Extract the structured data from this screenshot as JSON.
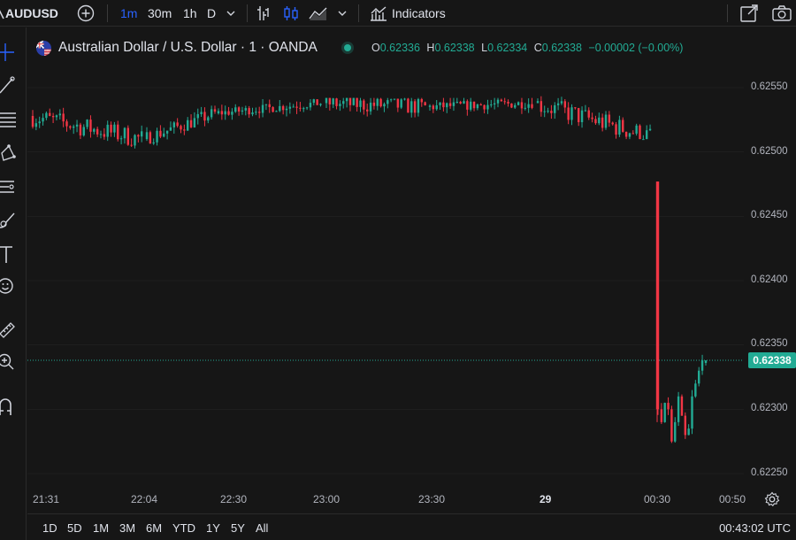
{
  "toolbar": {
    "symbol": "AUDUSD",
    "timeframes": [
      "1m",
      "30m",
      "1h",
      "D"
    ],
    "active_timeframe": "1m",
    "indicators_label": "Indicators"
  },
  "legend": {
    "title": "Australian Dollar / U.S. Dollar · 1 · OANDA",
    "open_key": "O",
    "open": "0.62336",
    "high_key": "H",
    "high": "0.62338",
    "low_key": "L",
    "low": "0.62334",
    "close_key": "C",
    "close": "0.62338",
    "change": "−0.00002 (−0.00%)"
  },
  "price_axis": {
    "ticks": [
      "0.62550",
      "0.62500",
      "0.62450",
      "0.62400",
      "0.62350",
      "0.62300",
      "0.62250"
    ],
    "last_price": "0.62338"
  },
  "time_axis": {
    "labels": [
      "21:31",
      "22:04",
      "22:30",
      "23:00",
      "23:30",
      "29",
      "00:30",
      "00:50"
    ]
  },
  "ranges": [
    "1D",
    "5D",
    "1M",
    "3M",
    "6M",
    "YTD",
    "1Y",
    "5Y",
    "All"
  ],
  "clock": "00:43:02 UTC",
  "colors": {
    "up": "#22ab94",
    "down": "#f23645",
    "background": "#161616",
    "accent": "#2962ff"
  },
  "chart_data": {
    "type": "candlestick",
    "symbol": "AUDUSD",
    "interval": "1m",
    "ylim": [
      0.6224,
      0.6257
    ],
    "segments": [
      {
        "from": "21:31",
        "to": "22:04",
        "open": 0.62528,
        "close": 0.6251,
        "high": 0.62535,
        "low": 0.6249
      },
      {
        "from": "22:04",
        "to": "22:30",
        "open": 0.6251,
        "close": 0.6253,
        "high": 0.62536,
        "low": 0.62505
      },
      {
        "from": "22:30",
        "to": "23:00",
        "open": 0.6253,
        "close": 0.62538,
        "high": 0.62545,
        "low": 0.62525
      },
      {
        "from": "23:00",
        "to": "23:30",
        "open": 0.62538,
        "close": 0.62535,
        "high": 0.62542,
        "low": 0.62505
      },
      {
        "from": "23:30",
        "to": "29",
        "open": 0.62535,
        "close": 0.62538,
        "high": 0.62542,
        "low": 0.6252
      },
      {
        "from": "29",
        "to": "00:30",
        "open": 0.62538,
        "close": 0.62512,
        "high": 0.62556,
        "low": 0.6251
      },
      {
        "from": "00:30",
        "to": "00:43",
        "open": 0.62477,
        "close": 0.62338,
        "high": 0.62477,
        "low": 0.62268
      }
    ],
    "last_candle": {
      "open": 0.62336,
      "high": 0.62338,
      "low": 0.62334,
      "close": 0.62338
    }
  }
}
